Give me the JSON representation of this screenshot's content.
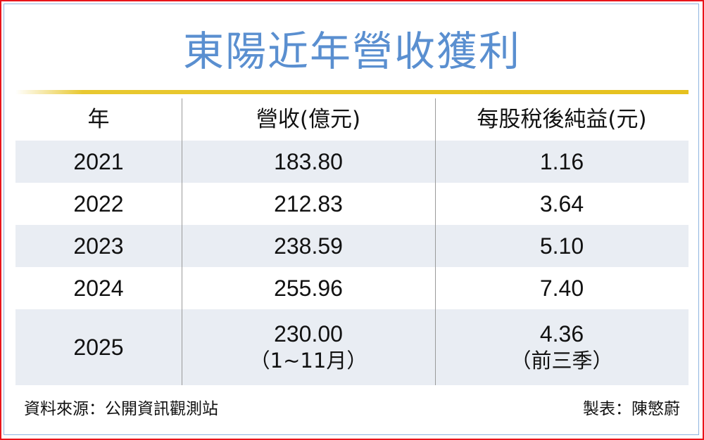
{
  "title": "東陽近年營收獲利",
  "colors": {
    "title": "#5a8fd0",
    "rule": "#e6c11e",
    "row_shade": "#e9edf3",
    "frame": "#e8141b"
  },
  "chart_data": {
    "type": "table",
    "title": "東陽近年營收獲利",
    "columns": [
      "年",
      "營收(億元)",
      "每股稅後純益(元)"
    ],
    "rows": [
      {
        "year": "2021",
        "revenue": "183.80",
        "eps": "1.16"
      },
      {
        "year": "2022",
        "revenue": "212.83",
        "eps": "3.64"
      },
      {
        "year": "2023",
        "revenue": "238.59",
        "eps": "5.10"
      },
      {
        "year": "2024",
        "revenue": "255.96",
        "eps": "7.40"
      },
      {
        "year": "2025",
        "revenue": "230.00",
        "revenue_note": "（1~11月）",
        "eps": "4.36",
        "eps_note": "（前三季）"
      }
    ]
  },
  "footer": {
    "source": "資料來源：公開資訊觀測站",
    "credit": "製表：陳慜蔚"
  }
}
